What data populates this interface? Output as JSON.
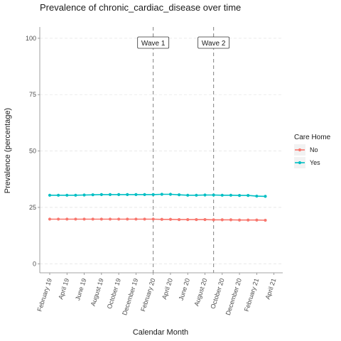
{
  "chart_data": {
    "type": "line",
    "title": "Prevalence of chronic_cardiac_disease over time",
    "xlabel": "Calendar Month",
    "ylabel": "Prevalence (percentage)",
    "ylim": [
      -4,
      105
    ],
    "yticks": [
      0,
      25,
      50,
      75,
      100
    ],
    "x": [
      "2019-02",
      "2019-03",
      "2019-04",
      "2019-05",
      "2019-06",
      "2019-07",
      "2019-08",
      "2019-09",
      "2019-10",
      "2019-11",
      "2019-12",
      "2020-01",
      "2020-02",
      "2020-03",
      "2020-04",
      "2020-05",
      "2020-06",
      "2020-07",
      "2020-08",
      "2020-09",
      "2020-10",
      "2020-11",
      "2020-12",
      "2021-01",
      "2021-02",
      "2021-03"
    ],
    "xtick_labels": [
      "February 19",
      "April 19",
      "June 19",
      "August 19",
      "October 19",
      "December 19",
      "February 20",
      "April 20",
      "June 20",
      "August 20",
      "October 20",
      "December 20",
      "February 21",
      "April 21"
    ],
    "xtick_dates": [
      "2019-02",
      "2019-04",
      "2019-06",
      "2019-08",
      "2019-10",
      "2019-12",
      "2020-02",
      "2020-04",
      "2020-06",
      "2020-08",
      "2020-10",
      "2020-12",
      "2021-02",
      "2021-04"
    ],
    "series": [
      {
        "name": "No",
        "color": "#F8766D",
        "values": [
          19.8,
          19.8,
          19.8,
          19.8,
          19.8,
          19.8,
          19.8,
          19.8,
          19.8,
          19.8,
          19.8,
          19.8,
          19.8,
          19.7,
          19.7,
          19.6,
          19.6,
          19.6,
          19.6,
          19.5,
          19.5,
          19.5,
          19.4,
          19.4,
          19.4,
          19.3
        ]
      },
      {
        "name": "Yes",
        "color": "#00BFC4",
        "values": [
          30.4,
          30.4,
          30.4,
          30.4,
          30.5,
          30.6,
          30.7,
          30.7,
          30.7,
          30.7,
          30.7,
          30.7,
          30.7,
          30.8,
          30.8,
          30.6,
          30.4,
          30.4,
          30.5,
          30.5,
          30.4,
          30.4,
          30.3,
          30.3,
          30.0,
          29.9
        ]
      }
    ],
    "legend": {
      "title": "Care Home",
      "placement": "right"
    },
    "annotations": [
      {
        "label": "Wave 1",
        "x": "2020-02"
      },
      {
        "label": "Wave 2",
        "x": "2020-09"
      }
    ],
    "grid": true
  }
}
